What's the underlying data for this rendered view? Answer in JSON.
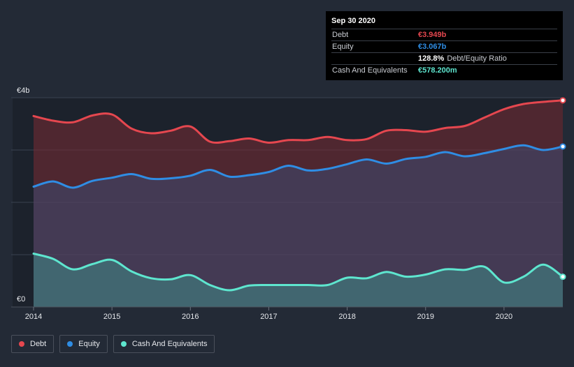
{
  "chart_data": {
    "type": "area",
    "y_unit": "€b",
    "ylim": [
      0,
      4
    ],
    "y_tick_labels": {
      "top": "€4b",
      "bottom": "€0"
    },
    "x_ticks": [
      2014,
      2015,
      2016,
      2017,
      2018,
      2019,
      2020
    ],
    "x_range": [
      2014.0,
      2020.75
    ],
    "series": [
      {
        "name": "Debt",
        "color": "#e5474f",
        "points": [
          [
            2014.0,
            3.65
          ],
          [
            2014.25,
            3.56
          ],
          [
            2014.5,
            3.53
          ],
          [
            2014.75,
            3.66
          ],
          [
            2015.0,
            3.68
          ],
          [
            2015.25,
            3.41
          ],
          [
            2015.5,
            3.32
          ],
          [
            2015.75,
            3.37
          ],
          [
            2016.0,
            3.45
          ],
          [
            2016.25,
            3.16
          ],
          [
            2016.5,
            3.17
          ],
          [
            2016.75,
            3.22
          ],
          [
            2017.0,
            3.14
          ],
          [
            2017.25,
            3.19
          ],
          [
            2017.5,
            3.19
          ],
          [
            2017.75,
            3.25
          ],
          [
            2018.0,
            3.19
          ],
          [
            2018.25,
            3.21
          ],
          [
            2018.5,
            3.37
          ],
          [
            2018.75,
            3.38
          ],
          [
            2019.0,
            3.35
          ],
          [
            2019.25,
            3.42
          ],
          [
            2019.5,
            3.46
          ],
          [
            2019.75,
            3.62
          ],
          [
            2020.0,
            3.78
          ],
          [
            2020.25,
            3.88
          ],
          [
            2020.5,
            3.92
          ],
          [
            2020.75,
            3.949
          ]
        ]
      },
      {
        "name": "Equity",
        "color": "#2f8de4",
        "points": [
          [
            2014.0,
            2.3
          ],
          [
            2014.25,
            2.4
          ],
          [
            2014.5,
            2.28
          ],
          [
            2014.75,
            2.41
          ],
          [
            2015.0,
            2.47
          ],
          [
            2015.25,
            2.54
          ],
          [
            2015.5,
            2.45
          ],
          [
            2015.75,
            2.46
          ],
          [
            2016.0,
            2.51
          ],
          [
            2016.25,
            2.62
          ],
          [
            2016.5,
            2.49
          ],
          [
            2016.75,
            2.52
          ],
          [
            2017.0,
            2.58
          ],
          [
            2017.25,
            2.7
          ],
          [
            2017.5,
            2.61
          ],
          [
            2017.75,
            2.64
          ],
          [
            2018.0,
            2.73
          ],
          [
            2018.25,
            2.82
          ],
          [
            2018.5,
            2.74
          ],
          [
            2018.75,
            2.83
          ],
          [
            2019.0,
            2.87
          ],
          [
            2019.25,
            2.96
          ],
          [
            2019.5,
            2.88
          ],
          [
            2019.75,
            2.94
          ],
          [
            2020.0,
            3.02
          ],
          [
            2020.25,
            3.09
          ],
          [
            2020.5,
            3.0
          ],
          [
            2020.75,
            3.067
          ]
        ]
      },
      {
        "name": "Cash And Equivalents",
        "color": "#5ee6cf",
        "points": [
          [
            2014.0,
            1.02
          ],
          [
            2014.25,
            0.92
          ],
          [
            2014.5,
            0.72
          ],
          [
            2014.75,
            0.82
          ],
          [
            2015.0,
            0.9
          ],
          [
            2015.25,
            0.68
          ],
          [
            2015.5,
            0.55
          ],
          [
            2015.75,
            0.53
          ],
          [
            2016.0,
            0.61
          ],
          [
            2016.25,
            0.42
          ],
          [
            2016.5,
            0.32
          ],
          [
            2016.75,
            0.41
          ],
          [
            2017.0,
            0.42
          ],
          [
            2017.25,
            0.42
          ],
          [
            2017.5,
            0.42
          ],
          [
            2017.75,
            0.42
          ],
          [
            2018.0,
            0.56
          ],
          [
            2018.25,
            0.55
          ],
          [
            2018.5,
            0.67
          ],
          [
            2018.75,
            0.58
          ],
          [
            2019.0,
            0.62
          ],
          [
            2019.25,
            0.72
          ],
          [
            2019.5,
            0.71
          ],
          [
            2019.75,
            0.77
          ],
          [
            2020.0,
            0.47
          ],
          [
            2020.25,
            0.58
          ],
          [
            2020.5,
            0.81
          ],
          [
            2020.75,
            0.578
          ]
        ]
      }
    ]
  },
  "tooltip": {
    "date": "Sep 30 2020",
    "debt_label": "Debt",
    "debt_value": "€3.949b",
    "debt_color": "#e5474f",
    "equity_label": "Equity",
    "equity_value": "€3.067b",
    "equity_color": "#2f8de4",
    "ratio_value": "128.8%",
    "ratio_label": "Debt/Equity Ratio",
    "cash_label": "Cash And Equivalents",
    "cash_value": "€578.200m",
    "cash_color": "#5ee6cf"
  },
  "legend": [
    {
      "label": "Debt",
      "color": "#e5474f"
    },
    {
      "label": "Equity",
      "color": "#2f8de4"
    },
    {
      "label": "Cash And Equivalents",
      "color": "#5ee6cf"
    }
  ]
}
